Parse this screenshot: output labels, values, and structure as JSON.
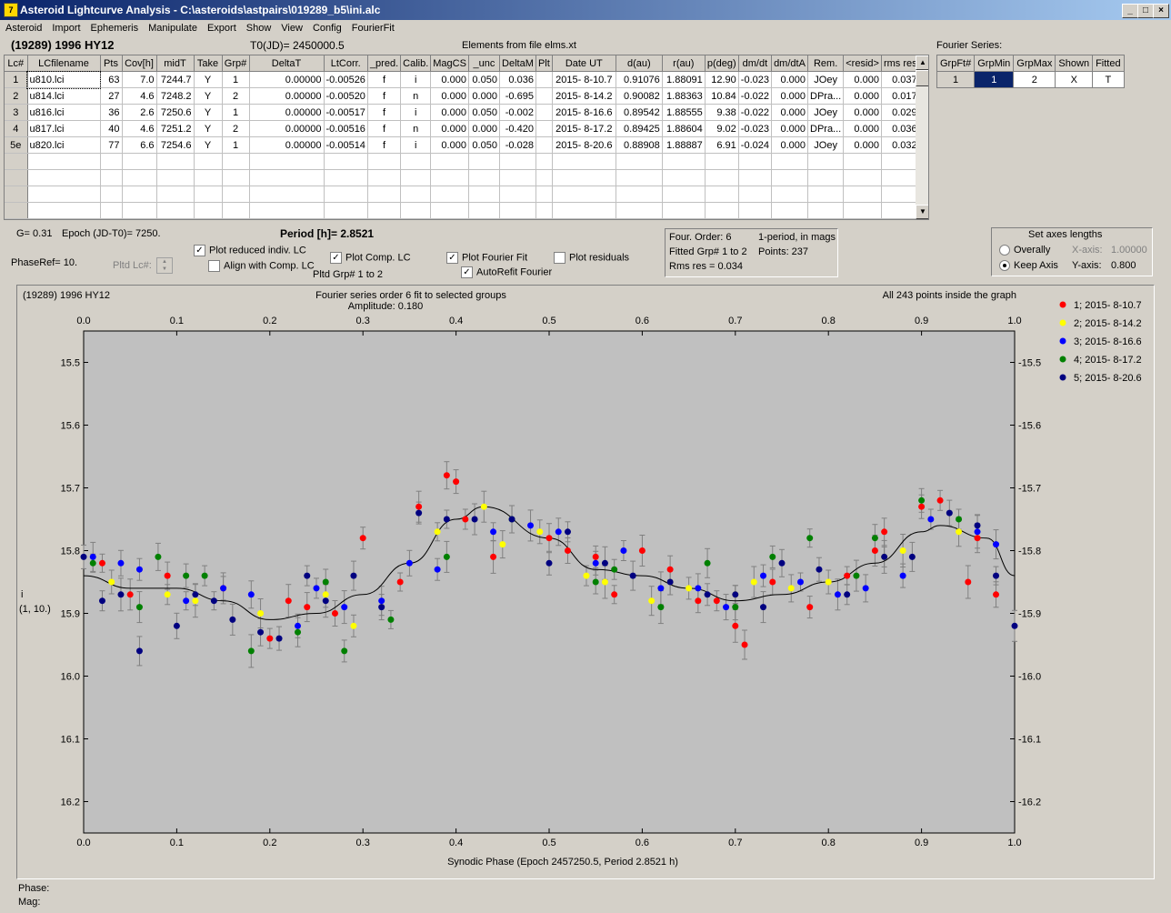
{
  "window": {
    "title": "Asteroid Lightcurve Analysis - C:\\asteroids\\astpairs\\019289_b5\\ini.alc",
    "icon_letter": "7",
    "minimize": "_",
    "maximize": "□",
    "close": "×"
  },
  "menu": [
    "Asteroid",
    "Import",
    "Ephemeris",
    "Manipulate",
    "Export",
    "Show",
    "View",
    "Config",
    "FourierFit"
  ],
  "header": {
    "asteroid": "(19289) 1996 HY12",
    "t0": "T0(JD)= 2450000.5",
    "elements": "Elements from file elms.xt"
  },
  "grid": {
    "columns": [
      "Lc#",
      "LCfilename",
      "Pts",
      "Cov[h]",
      "midT",
      "Take",
      "Grp#",
      "DeltaT",
      "LtCorr.",
      "_pred.",
      "Calib.",
      "MagCS",
      "_unc",
      "DeltaM",
      "Plt",
      "Date UT",
      "d(au)",
      "r(au)",
      "p(deg)",
      "dm/dt",
      "dm/dtA",
      "Rem.",
      "<resid>",
      "rms res"
    ],
    "rows": [
      [
        "1",
        "u810.lci",
        "63",
        "7.0",
        "7244.7",
        "Y",
        "1",
        "0.00000",
        "-0.00526",
        "f",
        "i",
        "0.000",
        "0.050",
        "0.036",
        "",
        "2015- 8-10.7",
        "0.91076",
        "1.88091",
        "12.90",
        "-0.023",
        "0.000",
        "JOey",
        "0.000",
        "0.037"
      ],
      [
        "2",
        "u814.lci",
        "27",
        "4.6",
        "7248.2",
        "Y",
        "2",
        "0.00000",
        "-0.00520",
        "f",
        "n",
        "0.000",
        "0.000",
        "-0.695",
        "",
        "2015- 8-14.2",
        "0.90082",
        "1.88363",
        "10.84",
        "-0.022",
        "0.000",
        "DPra...",
        "0.000",
        "0.017"
      ],
      [
        "3",
        "u816.lci",
        "36",
        "2.6",
        "7250.6",
        "Y",
        "1",
        "0.00000",
        "-0.00517",
        "f",
        "i",
        "0.000",
        "0.050",
        "-0.002",
        "",
        "2015- 8-16.6",
        "0.89542",
        "1.88555",
        "9.38",
        "-0.022",
        "0.000",
        "JOey",
        "0.000",
        "0.029"
      ],
      [
        "4",
        "u817.lci",
        "40",
        "4.6",
        "7251.2",
        "Y",
        "2",
        "0.00000",
        "-0.00516",
        "f",
        "n",
        "0.000",
        "0.000",
        "-0.420",
        "",
        "2015- 8-17.2",
        "0.89425",
        "1.88604",
        "9.02",
        "-0.023",
        "0.000",
        "DPra...",
        "0.000",
        "0.036"
      ],
      [
        "5e",
        "u820.lci",
        "77",
        "6.6",
        "7254.6",
        "Y",
        "1",
        "0.00000",
        "-0.00514",
        "f",
        "i",
        "0.000",
        "0.050",
        "-0.028",
        "",
        "2015- 8-20.6",
        "0.88908",
        "1.88887",
        "6.91",
        "-0.024",
        "0.000",
        "JOey",
        "0.000",
        "0.032"
      ]
    ],
    "empty_rows": 4
  },
  "fourier_series": {
    "label": "Fourier Series:",
    "columns": [
      "GrpFt#",
      "GrpMin",
      "GrpMax",
      "Shown",
      "Fitted"
    ],
    "row": [
      "1",
      "1",
      "2",
      "X",
      "T"
    ]
  },
  "controls": {
    "g": "G= 0.31",
    "epoch": "Epoch (JD-T0)= 7250.",
    "period": "Period [h]= 2.8521",
    "phaseref": "PhaseRef= 10.",
    "pltd_lc": "Pltd Lc#:",
    "plot_reduced": "Plot reduced indiv. LC",
    "align_comp": "Align with Comp. LC",
    "plot_comp": "Plot Comp. LC",
    "pltd_grp": "Pltd Grp#  1   to   2",
    "plot_fourier": "Plot Fourier Fit",
    "autorefit": "AutoRefit Fourier",
    "plot_residuals": "Plot residuals",
    "check_mark": "✓"
  },
  "fit_info": {
    "order": "Four. Order:  6",
    "mode": "1-period, in mags",
    "fitted": "Fitted Grp# 1 to 2",
    "points": "Points: 237",
    "rms": "Rms res      = 0.034"
  },
  "axes_panel": {
    "title": "Set axes lengths",
    "overally": "Overally",
    "keep_axis": "Keep Axis",
    "x_label": "X-axis:",
    "x_value": "1.00000",
    "y_label": "Y-axis:",
    "y_value": "0.800"
  },
  "plot": {
    "name": "(19289) 1996 HY12",
    "subtitle": "Fourier series order 6 fit to selected groups",
    "amplitude": "Amplitude: 0.180",
    "points_note": "All 243 points inside the graph",
    "ylabel": "i",
    "ylabel2": "(1, 10.)",
    "xlabel": "Synodic Phase (Epoch 2457250.5, Period 2.8521 h)",
    "legend": [
      {
        "label": "1; 2015- 8-10.7",
        "color": "#ff0000"
      },
      {
        "label": "2; 2015- 8-14.2",
        "color": "#ffff00"
      },
      {
        "label": "3; 2015- 8-16.6",
        "color": "#0000ff"
      },
      {
        "label": "4; 2015- 8-17.2",
        "color": "#008000"
      },
      {
        "label": "5; 2015- 8-20.6",
        "color": "#000080"
      }
    ]
  },
  "chart_data": {
    "type": "scatter",
    "xlim": [
      0.0,
      1.0
    ],
    "ylim": [
      16.25,
      15.45
    ],
    "y_inverted": true,
    "xticks": [
      "0.0",
      "0.1",
      "0.2",
      "0.3",
      "0.4",
      "0.5",
      "0.6",
      "0.7",
      "0.8",
      "0.9",
      "1.0"
    ],
    "yticks": [
      "15.5",
      "15.6",
      "15.7",
      "15.8",
      "15.9",
      "16.0",
      "16.1",
      "16.2"
    ],
    "fourier_fit": {
      "x": [
        0.0,
        0.05,
        0.1,
        0.15,
        0.2,
        0.25,
        0.3,
        0.35,
        0.4,
        0.43,
        0.5,
        0.55,
        0.6,
        0.65,
        0.7,
        0.75,
        0.8,
        0.85,
        0.9,
        0.92,
        0.97,
        1.0
      ],
      "y": [
        15.84,
        15.86,
        15.86,
        15.88,
        15.91,
        15.9,
        15.87,
        15.82,
        15.75,
        15.73,
        15.78,
        15.83,
        15.84,
        15.86,
        15.88,
        15.87,
        15.85,
        15.82,
        15.77,
        15.76,
        15.78,
        15.84
      ]
    },
    "series": [
      {
        "name": "1; 2015- 8-10.7",
        "color": "#ff0000",
        "x": [
          0.02,
          0.05,
          0.09,
          0.15,
          0.2,
          0.22,
          0.24,
          0.27,
          0.3,
          0.34,
          0.36,
          0.39,
          0.4,
          0.41,
          0.44,
          0.5,
          0.52,
          0.55,
          0.57,
          0.6,
          0.63,
          0.66,
          0.68,
          0.7,
          0.71,
          0.74,
          0.78,
          0.82,
          0.85,
          0.86,
          0.9,
          0.92,
          0.95,
          0.96,
          0.98
        ],
        "y": [
          15.82,
          15.87,
          15.84,
          15.86,
          15.94,
          15.88,
          15.89,
          15.9,
          15.78,
          15.85,
          15.73,
          15.68,
          15.69,
          15.75,
          15.81,
          15.78,
          15.8,
          15.81,
          15.87,
          15.8,
          15.83,
          15.88,
          15.88,
          15.92,
          15.95,
          15.85,
          15.89,
          15.84,
          15.8,
          15.77,
          15.73,
          15.72,
          15.85,
          15.78,
          15.87
        ]
      },
      {
        "name": "2; 2015- 8-14.2",
        "color": "#ffff00",
        "x": [
          0.03,
          0.09,
          0.12,
          0.19,
          0.26,
          0.29,
          0.38,
          0.43,
          0.45,
          0.49,
          0.54,
          0.56,
          0.61,
          0.63,
          0.65,
          0.7,
          0.72,
          0.76,
          0.8,
          0.86,
          0.88,
          0.94
        ],
        "y": [
          15.85,
          15.87,
          15.88,
          15.9,
          15.87,
          15.92,
          15.77,
          15.73,
          15.79,
          15.77,
          15.84,
          15.85,
          15.88,
          15.85,
          15.86,
          15.87,
          15.85,
          15.86,
          15.85,
          15.81,
          15.8,
          15.77
        ]
      },
      {
        "name": "3; 2015- 8-16.6",
        "color": "#0000ff",
        "x": [
          0.01,
          0.04,
          0.06,
          0.11,
          0.15,
          0.18,
          0.23,
          0.25,
          0.28,
          0.32,
          0.35,
          0.38,
          0.44,
          0.48,
          0.51,
          0.55,
          0.58,
          0.62,
          0.66,
          0.69,
          0.73,
          0.77,
          0.81,
          0.84,
          0.88,
          0.91,
          0.96,
          0.98
        ],
        "y": [
          15.81,
          15.82,
          15.83,
          15.88,
          15.86,
          15.87,
          15.92,
          15.86,
          15.89,
          15.88,
          15.82,
          15.83,
          15.77,
          15.76,
          15.77,
          15.82,
          15.8,
          15.86,
          15.86,
          15.89,
          15.84,
          15.85,
          15.87,
          15.86,
          15.84,
          15.75,
          15.77,
          15.79
        ]
      },
      {
        "name": "4; 2015- 8-17.2",
        "color": "#008000",
        "x": [
          0.01,
          0.06,
          0.08,
          0.11,
          0.13,
          0.18,
          0.23,
          0.26,
          0.28,
          0.33,
          0.39,
          0.46,
          0.55,
          0.57,
          0.62,
          0.67,
          0.7,
          0.74,
          0.78,
          0.83,
          0.85,
          0.9,
          0.94
        ],
        "y": [
          15.82,
          15.89,
          15.81,
          15.84,
          15.84,
          15.96,
          15.93,
          15.85,
          15.96,
          15.91,
          15.81,
          15.75,
          15.85,
          15.83,
          15.89,
          15.82,
          15.89,
          15.81,
          15.78,
          15.84,
          15.78,
          15.72,
          15.75
        ]
      },
      {
        "name": "5; 2015- 8-20.6",
        "color": "#000080",
        "x": [
          0.0,
          0.02,
          0.04,
          0.06,
          0.1,
          0.12,
          0.14,
          0.16,
          0.19,
          0.21,
          0.24,
          0.26,
          0.29,
          0.32,
          0.36,
          0.39,
          0.42,
          0.46,
          0.5,
          0.52,
          0.56,
          0.59,
          0.63,
          0.67,
          0.7,
          0.73,
          0.75,
          0.79,
          0.82,
          0.86,
          0.89,
          0.93,
          0.96,
          0.98,
          1.0
        ],
        "y": [
          15.81,
          15.88,
          15.87,
          15.96,
          15.92,
          15.87,
          15.88,
          15.91,
          15.93,
          15.94,
          15.84,
          15.88,
          15.84,
          15.89,
          15.74,
          15.75,
          15.75,
          15.75,
          15.82,
          15.77,
          15.82,
          15.84,
          15.85,
          15.87,
          15.87,
          15.89,
          15.82,
          15.83,
          15.87,
          15.81,
          15.81,
          15.74,
          15.76,
          15.84,
          15.92
        ]
      }
    ]
  },
  "status": {
    "phase": "Phase:",
    "mag": "Mag:"
  }
}
